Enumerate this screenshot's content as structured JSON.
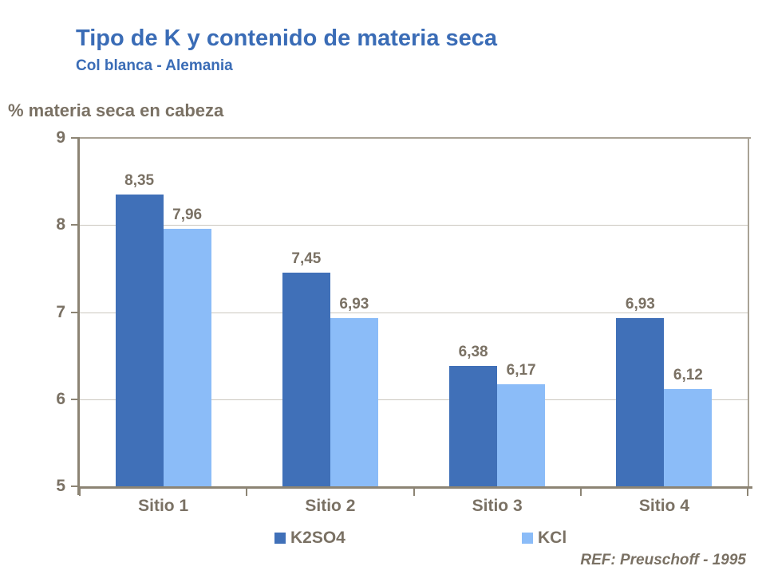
{
  "slide": {
    "title": "Tipo de K y contenido de materia seca",
    "subtitle": "Col blanca - Alemania",
    "ref": "REF: Preuschoff - 1995",
    "title_color": "#3A6CB6",
    "text_color": "#7A7164"
  },
  "chart_data": {
    "type": "bar",
    "title": "Tipo de K y contenido de materia seca",
    "subtitle": "Col blanca - Alemania",
    "ylabel": "% materia seca en cabeza",
    "xlabel": "",
    "categories": [
      "Sitio 1",
      "Sitio 2",
      "Sitio 3",
      "Sitio 4"
    ],
    "series": [
      {
        "name": "K2SO4",
        "color": "#4070B8",
        "values": [
          8.35,
          7.45,
          6.38,
          6.93
        ],
        "labels": [
          "8,35",
          "7,45",
          "6,38",
          "6,93"
        ]
      },
      {
        "name": "KCl",
        "color": "#8BBCF8",
        "values": [
          7.96,
          6.93,
          6.17,
          6.12
        ],
        "labels": [
          "7,96",
          "6,93",
          "6,17",
          "6,12"
        ]
      }
    ],
    "ylim": [
      5,
      9
    ],
    "yticks": [
      9,
      8,
      7,
      6,
      5
    ],
    "gridlines": [
      8,
      7,
      6
    ],
    "grid": true,
    "legend_position": "bottom",
    "axis_color": "#8C8474",
    "grid_color": "#CBC7BF",
    "border_color": "#A9A295",
    "label_color": "#7A7164"
  }
}
